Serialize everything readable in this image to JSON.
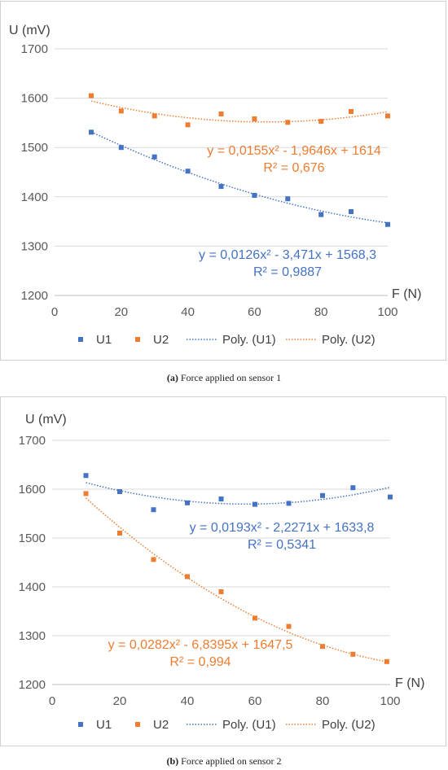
{
  "captions": [
    {
      "label": "(a)",
      "text": " Force applied on sensor 1"
    },
    {
      "label": "(b)",
      "text": " Force applied on sensor 2"
    }
  ],
  "colors": {
    "U1": "#4472C4",
    "U2": "#ED7D31",
    "grid": "#d9d9d9",
    "axis": "#bfbfbf"
  },
  "chart_data": [
    {
      "type": "scatter",
      "ylabel": "U (mV)",
      "xlabel": "F (N)",
      "xlim": [
        0,
        100
      ],
      "ylim": [
        1200,
        1700
      ],
      "xticks": [
        0,
        20,
        40,
        60,
        80,
        100
      ],
      "yticks": [
        1200,
        1300,
        1400,
        1500,
        1600,
        1700
      ],
      "grid": "horizontal",
      "legend_position": "bottom",
      "legend": [
        "U1",
        "U2",
        "Poly. (U1)",
        "Poly. (U2)"
      ],
      "series": [
        {
          "name": "U1",
          "x": [
            11,
            20,
            30,
            40,
            50,
            60,
            70,
            80,
            89,
            100
          ],
          "y": [
            1531,
            1500,
            1481,
            1452,
            1421,
            1403,
            1396,
            1364,
            1370,
            1344
          ]
        },
        {
          "name": "U2",
          "x": [
            11,
            20,
            30,
            40,
            50,
            60,
            70,
            80,
            89,
            100
          ],
          "y": [
            1605,
            1574,
            1564,
            1546,
            1568,
            1558,
            1551,
            1553,
            1573,
            1564
          ]
        }
      ],
      "trendlines": [
        {
          "name": "Poly. (U1)",
          "a": 0.0126,
          "b": -3.471,
          "c": 1568.3,
          "equation": "y = 0,0126x² - 3,471x + 1568,3",
          "r2": "R² = 0,9887"
        },
        {
          "name": "Poly. (U2)",
          "a": 0.0155,
          "b": -1.9646,
          "c": 1614,
          "equation": "y = 0,0155x² - 1,9646x + 1614",
          "r2": "R² = 0,676"
        }
      ]
    },
    {
      "type": "scatter",
      "ylabel": "U (mV)",
      "xlabel": "F (N)",
      "xlim": [
        0,
        100
      ],
      "ylim": [
        1200,
        1700
      ],
      "xticks": [
        0,
        20,
        40,
        60,
        80,
        100
      ],
      "yticks": [
        1200,
        1300,
        1400,
        1500,
        1600,
        1700
      ],
      "grid": "horizontal",
      "legend_position": "bottom",
      "legend": [
        "U1",
        "U2",
        "Poly. (U1)",
        "Poly. (U2)"
      ],
      "series": [
        {
          "name": "U1",
          "x": [
            10,
            20,
            30,
            40,
            50,
            60,
            70,
            80,
            89,
            100
          ],
          "y": [
            1628,
            1595,
            1558,
            1572,
            1580,
            1569,
            1571,
            1587,
            1603,
            1584
          ]
        },
        {
          "name": "U2",
          "x": [
            10,
            20,
            30,
            40,
            50,
            60,
            70,
            80,
            89,
            99
          ],
          "y": [
            1591,
            1510,
            1456,
            1421,
            1390,
            1336,
            1319,
            1278,
            1262,
            1247
          ]
        }
      ],
      "trendlines": [
        {
          "name": "Poly. (U1)",
          "a": 0.0193,
          "b": -2.2271,
          "c": 1633.8,
          "equation": "y = 0,0193x² - 2,2271x + 1633,8",
          "r2": "R² = 0,5341"
        },
        {
          "name": "Poly. (U2)",
          "a": 0.0282,
          "b": -6.8395,
          "c": 1647.5,
          "equation": "y = 0,0282x² - 6,8395x + 1647,5",
          "r2": "R² = 0,994"
        }
      ]
    }
  ]
}
